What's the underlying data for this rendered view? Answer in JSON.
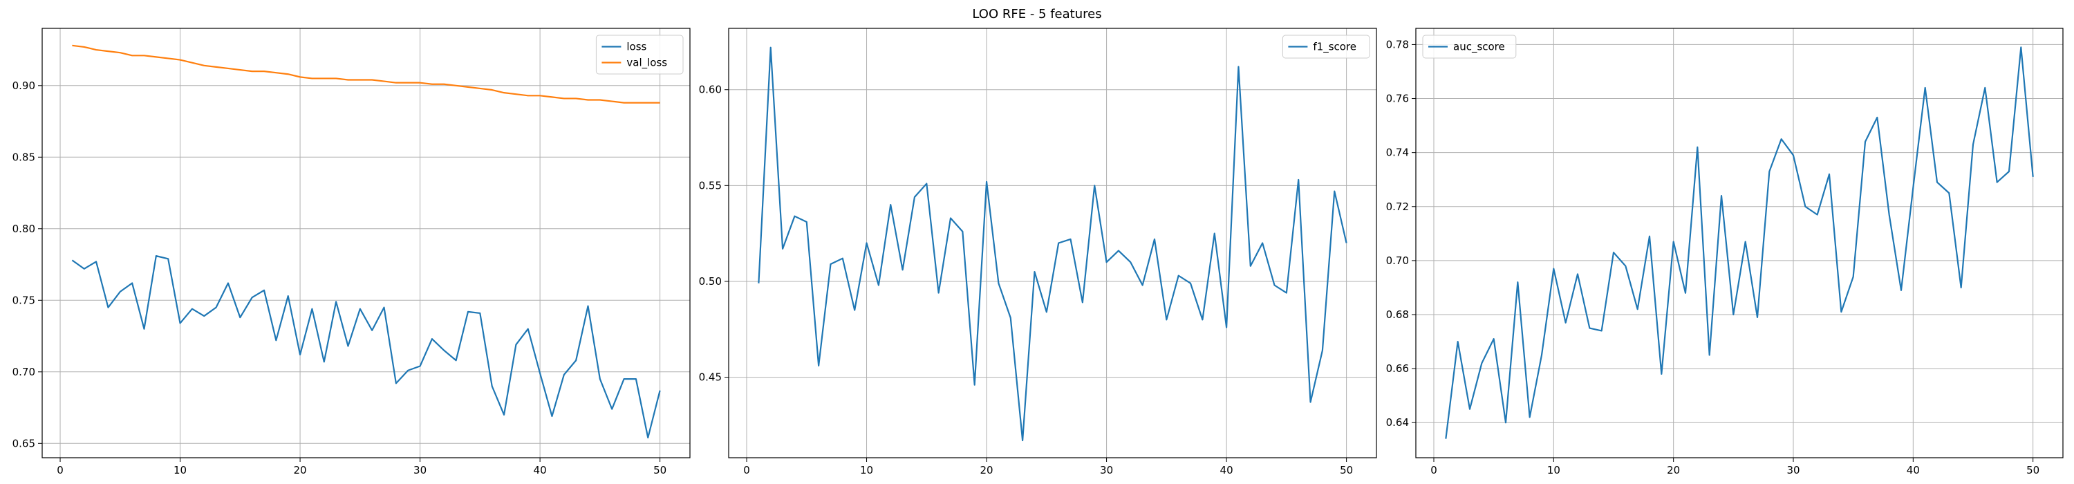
{
  "figure": {
    "title": "LOO RFE - 5 features"
  },
  "colors": {
    "blue": "#1f77b4",
    "orange": "#ff7f0e",
    "grid": "#b0b0b0",
    "axes": "#000000",
    "legend_border": "#cccccc"
  },
  "chart_data": [
    {
      "type": "line",
      "title": "",
      "xlabel": "",
      "ylabel": "",
      "grid": true,
      "legend_position": "top-right",
      "xlim": [
        -1.5,
        52.5
      ],
      "ylim": [
        0.64,
        0.94
      ],
      "xticks": [
        0,
        10,
        20,
        30,
        40,
        50
      ],
      "yticks": [
        0.65,
        0.7,
        0.75,
        0.8,
        0.85,
        0.9
      ],
      "ytick_labels": [
        "0.65",
        "0.70",
        "0.75",
        "0.80",
        "0.85",
        "0.90"
      ],
      "x": [
        1,
        2,
        3,
        4,
        5,
        6,
        7,
        8,
        9,
        10,
        11,
        12,
        13,
        14,
        15,
        16,
        17,
        18,
        19,
        20,
        21,
        22,
        23,
        24,
        25,
        26,
        27,
        28,
        29,
        30,
        31,
        32,
        33,
        34,
        35,
        36,
        37,
        38,
        39,
        40,
        41,
        42,
        43,
        44,
        45,
        46,
        47,
        48,
        49,
        50
      ],
      "series": [
        {
          "name": "loss",
          "color": "blue",
          "values": [
            0.778,
            0.772,
            0.777,
            0.745,
            0.756,
            0.762,
            0.73,
            0.781,
            0.779,
            0.734,
            0.744,
            0.739,
            0.745,
            0.762,
            0.738,
            0.752,
            0.757,
            0.722,
            0.753,
            0.712,
            0.744,
            0.707,
            0.749,
            0.718,
            0.744,
            0.729,
            0.745,
            0.692,
            0.701,
            0.704,
            0.723,
            0.715,
            0.708,
            0.742,
            0.741,
            0.69,
            0.67,
            0.719,
            0.73,
            0.699,
            0.669,
            0.698,
            0.708,
            0.746,
            0.695,
            0.674,
            0.695,
            0.695,
            0.654,
            0.687
          ]
        },
        {
          "name": "val_loss",
          "color": "orange",
          "values": [
            0.928,
            0.927,
            0.925,
            0.924,
            0.923,
            0.921,
            0.921,
            0.92,
            0.919,
            0.918,
            0.916,
            0.914,
            0.913,
            0.912,
            0.911,
            0.91,
            0.91,
            0.909,
            0.908,
            0.906,
            0.905,
            0.905,
            0.905,
            0.904,
            0.904,
            0.904,
            0.903,
            0.902,
            0.902,
            0.902,
            0.901,
            0.901,
            0.9,
            0.899,
            0.898,
            0.897,
            0.895,
            0.894,
            0.893,
            0.893,
            0.892,
            0.891,
            0.891,
            0.89,
            0.89,
            0.889,
            0.888,
            0.888,
            0.888,
            0.888
          ]
        }
      ]
    },
    {
      "type": "line",
      "title": "",
      "xlabel": "",
      "ylabel": "",
      "grid": true,
      "legend_position": "top-right",
      "xlim": [
        -1.5,
        52.5
      ],
      "ylim": [
        0.408,
        0.632
      ],
      "xticks": [
        0,
        10,
        20,
        30,
        40,
        50
      ],
      "yticks": [
        0.45,
        0.5,
        0.55,
        0.6
      ],
      "ytick_labels": [
        "0.45",
        "0.50",
        "0.55",
        "0.60"
      ],
      "x": [
        1,
        2,
        3,
        4,
        5,
        6,
        7,
        8,
        9,
        10,
        11,
        12,
        13,
        14,
        15,
        16,
        17,
        18,
        19,
        20,
        21,
        22,
        23,
        24,
        25,
        26,
        27,
        28,
        29,
        30,
        31,
        32,
        33,
        34,
        35,
        36,
        37,
        38,
        39,
        40,
        41,
        42,
        43,
        44,
        45,
        46,
        47,
        48,
        49,
        50
      ],
      "series": [
        {
          "name": "f1_score",
          "color": "blue",
          "values": [
            0.499,
            0.622,
            0.517,
            0.534,
            0.531,
            0.456,
            0.509,
            0.512,
            0.485,
            0.52,
            0.498,
            0.54,
            0.506,
            0.544,
            0.551,
            0.494,
            0.533,
            0.526,
            0.446,
            0.552,
            0.499,
            0.481,
            0.417,
            0.505,
            0.484,
            0.52,
            0.522,
            0.489,
            0.55,
            0.51,
            0.516,
            0.51,
            0.498,
            0.522,
            0.48,
            0.503,
            0.499,
            0.48,
            0.525,
            0.476,
            0.612,
            0.508,
            0.52,
            0.498,
            0.494,
            0.553,
            0.437,
            0.464,
            0.547,
            0.52
          ]
        }
      ]
    },
    {
      "type": "line",
      "title": "",
      "xlabel": "",
      "ylabel": "",
      "grid": true,
      "legend_position": "top-left",
      "xlim": [
        -1.5,
        52.5
      ],
      "ylim": [
        0.627,
        0.786
      ],
      "xticks": [
        0,
        10,
        20,
        30,
        40,
        50
      ],
      "yticks": [
        0.64,
        0.66,
        0.68,
        0.7,
        0.72,
        0.74,
        0.76,
        0.78
      ],
      "ytick_labels": [
        "0.64",
        "0.66",
        "0.68",
        "0.70",
        "0.72",
        "0.74",
        "0.76",
        "0.78"
      ],
      "x": [
        1,
        2,
        3,
        4,
        5,
        6,
        7,
        8,
        9,
        10,
        11,
        12,
        13,
        14,
        15,
        16,
        17,
        18,
        19,
        20,
        21,
        22,
        23,
        24,
        25,
        26,
        27,
        28,
        29,
        30,
        31,
        32,
        33,
        34,
        35,
        36,
        37,
        38,
        39,
        40,
        41,
        42,
        43,
        44,
        45,
        46,
        47,
        48,
        49,
        50
      ],
      "series": [
        {
          "name": "auc_score",
          "color": "blue",
          "values": [
            0.634,
            0.67,
            0.645,
            0.662,
            0.671,
            0.64,
            0.692,
            0.642,
            0.665,
            0.697,
            0.677,
            0.695,
            0.675,
            0.674,
            0.703,
            0.698,
            0.682,
            0.709,
            0.658,
            0.707,
            0.688,
            0.742,
            0.665,
            0.724,
            0.68,
            0.707,
            0.679,
            0.733,
            0.745,
            0.739,
            0.72,
            0.717,
            0.732,
            0.681,
            0.694,
            0.744,
            0.753,
            0.717,
            0.689,
            0.727,
            0.764,
            0.729,
            0.725,
            0.69,
            0.743,
            0.764,
            0.729,
            0.733,
            0.779,
            0.731
          ]
        }
      ]
    }
  ]
}
